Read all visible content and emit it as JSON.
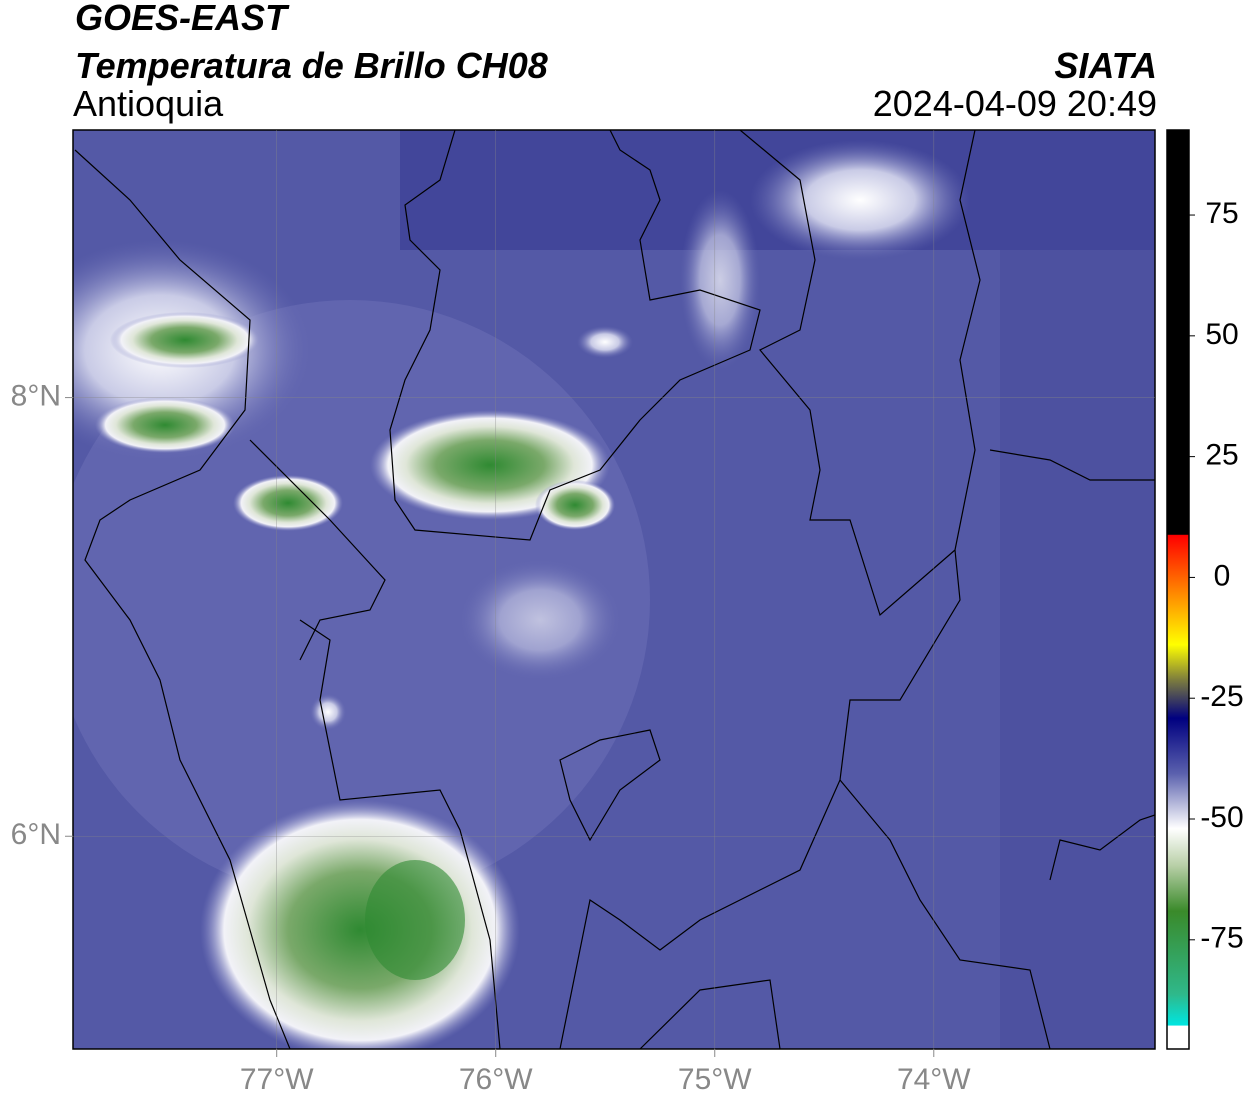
{
  "header": {
    "satellite": "GOES-EAST",
    "product": "Temperatura de Brillo CH08",
    "region": "Antioquia",
    "source": "SIATA",
    "datetime": "2024-04-09 20:49"
  },
  "map": {
    "lonlim": [
      -77.93,
      -72.99
    ],
    "latlim": [
      5.03,
      9.22
    ],
    "lonticks": [
      {
        "value": -77,
        "label": "77°W"
      },
      {
        "value": -76,
        "label": "76°W"
      },
      {
        "value": -75,
        "label": "75°W"
      },
      {
        "value": -74,
        "label": "74°W"
      }
    ],
    "latticks": [
      {
        "value": 8,
        "label": "8°N"
      },
      {
        "value": 6,
        "label": "6°N"
      }
    ]
  },
  "colorbar": {
    "lim": [
      -97.6,
      92.6
    ],
    "ticks": [
      75,
      50,
      25,
      0,
      -25,
      -50,
      -75
    ]
  }
}
